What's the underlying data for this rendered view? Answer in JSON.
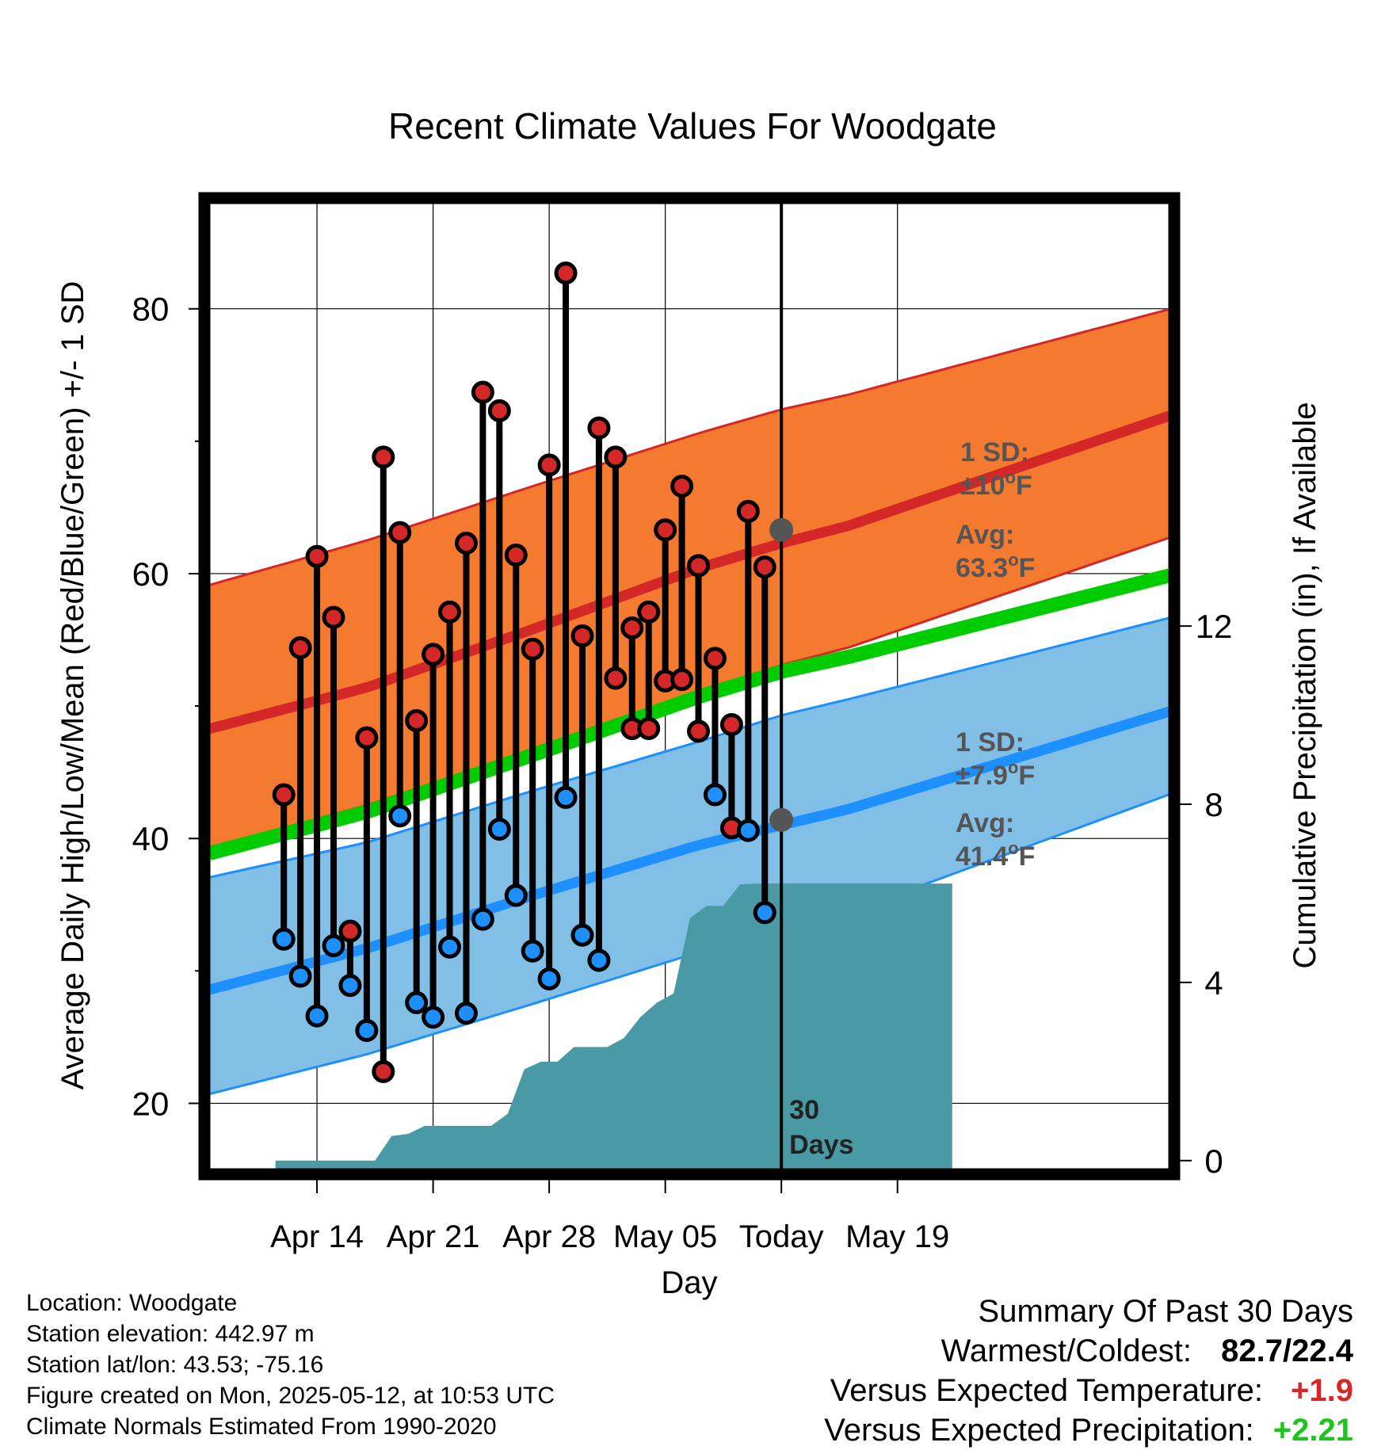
{
  "title": "Recent Climate Values For Woodgate",
  "footer": {
    "location": "Location: Woodgate",
    "elevation": "Station elevation: 442.97 m",
    "latlon": "Station lat/lon: 43.53; -75.16",
    "created": "Figure created on Mon, 2025-05-12, at 10:53 UTC",
    "normals": "Climate Normals Estimated From 1990-2020"
  },
  "summary": {
    "heading": "Summary Of Past 30 Days",
    "warmest_coldest_label": "Warmest/Coldest:",
    "warmest_coldest_value": "82.7/22.4",
    "temp_label": "Versus Expected Temperature:",
    "temp_value": "+1.9",
    "precip_label": "Versus Expected Precipitation:",
    "precip_value": "+2.21",
    "temp_color": "#d62728",
    "precip_color": "#1ec41e"
  },
  "colors": {
    "high_band": "#f47a30",
    "high_line": "#d42727",
    "low_band": "#82bfe6",
    "low_line": "#1e8fff",
    "mean_line": "#00cc00",
    "precip_area": "#4a9aa5",
    "high_dot": "#d42727",
    "low_dot": "#1e8fff",
    "avg_dot": "#555555",
    "annotation_text": "#555555"
  },
  "chart_data": {
    "type": "line",
    "xlabel": "Day",
    "ylabel": "Average Daily High/Low/Mean (Red/Blue/Green) +/- 1 SD",
    "y2label": "Cumulative Precipitation (in), If Available",
    "ylim": [
      15,
      88
    ],
    "y2lim": [
      -0.2,
      21.5
    ],
    "xlim": [
      -4.5,
      53.4
    ],
    "x_unit": "days after 2025-04-12",
    "x_ticks": [
      {
        "x": 2,
        "label": "Apr 14"
      },
      {
        "x": 9,
        "label": "Apr 21"
      },
      {
        "x": 16,
        "label": "Apr 28"
      },
      {
        "x": 23,
        "label": "May 05"
      },
      {
        "x": 30,
        "label": "Today"
      },
      {
        "x": 37,
        "label": "May 19"
      }
    ],
    "y_ticks": [
      20,
      40,
      60,
      80
    ],
    "y_minor_ticks": [
      30,
      50,
      70
    ],
    "y2_ticks": [
      0,
      4,
      8,
      12
    ],
    "grid": true,
    "today_x": 30,
    "today_label": "30 Days",
    "normals": {
      "x": [
        -2.9,
        5,
        15,
        25,
        30,
        34,
        40.3
      ],
      "high_mean": [
        48.8,
        51.4,
        55.8,
        60.4,
        62.3,
        63.6,
        66.3
      ],
      "high_sd_top": [
        59.7,
        62.5,
        66.6,
        70.6,
        72.4,
        73.5,
        75.6
      ],
      "high_sd_bottom": [
        39.8,
        42.5,
        46.7,
        51.0,
        53.1,
        54.4,
        57.1
      ],
      "mean": [
        39.4,
        42.0,
        46.3,
        50.7,
        52.6,
        53.7,
        55.7
      ],
      "low_mean": [
        29.1,
        31.7,
        35.7,
        39.5,
        41.0,
        42.2,
        44.6
      ],
      "low_sd_top": [
        37.5,
        39.7,
        43.6,
        47.3,
        49.3,
        50.5,
        52.5
      ],
      "low_sd_bottom": [
        21.2,
        23.7,
        27.5,
        31.4,
        33.4,
        34.4,
        37.3
      ]
    },
    "daily": [
      {
        "day": "Apr 12",
        "high": 43.3,
        "low": 32.4,
        "high_above_normal": true,
        "low_above_normal": false
      },
      {
        "day": "Apr 13",
        "high": 54.4,
        "low": 29.6,
        "high_above_normal": true,
        "low_above_normal": false
      },
      {
        "day": "Apr 14",
        "high": 61.3,
        "low": 26.6,
        "high_above_normal": true,
        "low_above_normal": false
      },
      {
        "day": "Apr 15",
        "high": 56.7,
        "low": 31.9,
        "high_above_normal": true,
        "low_above_normal": false
      },
      {
        "day": "Apr 16",
        "high": 33.0,
        "low": 28.9,
        "high_above_normal": true,
        "low_above_normal": false
      },
      {
        "day": "Apr 17",
        "high": 47.6,
        "low": 25.5,
        "high_above_normal": true,
        "low_above_normal": false
      },
      {
        "day": "Apr 18",
        "high": 68.8,
        "low": 22.4,
        "high_above_normal": true,
        "low_above_normal": true
      },
      {
        "day": "Apr 19",
        "high": 63.1,
        "low": 41.7,
        "high_above_normal": true,
        "low_above_normal": false
      },
      {
        "day": "Apr 20",
        "high": 48.9,
        "low": 27.6,
        "high_above_normal": true,
        "low_above_normal": false
      },
      {
        "day": "Apr 21",
        "high": 53.9,
        "low": 26.5,
        "high_above_normal": true,
        "low_above_normal": false
      },
      {
        "day": "Apr 22",
        "high": 57.1,
        "low": 31.8,
        "high_above_normal": true,
        "low_above_normal": false
      },
      {
        "day": "Apr 23",
        "high": 62.3,
        "low": 26.8,
        "high_above_normal": true,
        "low_above_normal": false
      },
      {
        "day": "Apr 24",
        "high": 73.7,
        "low": 33.9,
        "high_above_normal": true,
        "low_above_normal": false
      },
      {
        "day": "Apr 25",
        "high": 72.3,
        "low": 40.7,
        "high_above_normal": true,
        "low_above_normal": false
      },
      {
        "day": "Apr 26",
        "high": 61.4,
        "low": 35.7,
        "high_above_normal": true,
        "low_above_normal": false
      },
      {
        "day": "Apr 27",
        "high": 54.3,
        "low": 31.5,
        "high_above_normal": true,
        "low_above_normal": false
      },
      {
        "day": "Apr 28",
        "high": 68.2,
        "low": 29.4,
        "high_above_normal": true,
        "low_above_normal": false
      },
      {
        "day": "Apr 29",
        "high": 82.7,
        "low": 43.1,
        "high_above_normal": true,
        "low_above_normal": false
      },
      {
        "day": "Apr 30",
        "high": 55.3,
        "low": 32.7,
        "high_above_normal": true,
        "low_above_normal": false
      },
      {
        "day": "May 01",
        "high": 71.0,
        "low": 30.8,
        "high_above_normal": true,
        "low_above_normal": false
      },
      {
        "day": "May 02",
        "high": 68.8,
        "low": 52.1,
        "high_above_normal": true,
        "low_above_normal": true
      },
      {
        "day": "May 03",
        "high": 55.9,
        "low": 48.3,
        "high_above_normal": true,
        "low_above_normal": true
      },
      {
        "day": "May 04",
        "high": 57.1,
        "low": 48.3,
        "high_above_normal": true,
        "low_above_normal": true
      },
      {
        "day": "May 05",
        "high": 63.3,
        "low": 51.9,
        "high_above_normal": true,
        "low_above_normal": true
      },
      {
        "day": "May 06",
        "high": 66.6,
        "low": 52.0,
        "high_above_normal": true,
        "low_above_normal": true
      },
      {
        "day": "May 07",
        "high": 60.6,
        "low": 48.1,
        "high_above_normal": true,
        "low_above_normal": true
      },
      {
        "day": "May 08",
        "high": 53.6,
        "low": 43.3,
        "high_above_normal": true,
        "low_above_normal": false
      },
      {
        "day": "May 09",
        "high": 48.6,
        "low": 40.8,
        "high_above_normal": true,
        "low_above_normal": true
      },
      {
        "day": "May 10",
        "high": 64.7,
        "low": 40.6,
        "high_above_normal": true,
        "low_above_normal": false
      },
      {
        "day": "May 11",
        "high": 60.5,
        "low": 34.4,
        "high_above_normal": true,
        "low_above_normal": false
      }
    ],
    "precip_cumulative": {
      "x": [
        -0.5,
        0.5,
        1.5,
        2.5,
        3.5,
        4.5,
        5.5,
        6.5,
        7.5,
        8.5,
        9.5,
        10.5,
        11.5,
        12.5,
        13.5,
        14.5,
        15.5,
        16.5,
        17.5,
        18.5,
        19.5,
        20.5,
        21.5,
        22.5,
        23.5,
        24.5,
        25.5,
        26.5,
        27.5,
        28.5,
        29.5,
        40.3
      ],
      "y": [
        0,
        0,
        0,
        0,
        0,
        0,
        0,
        0.55,
        0.6,
        0.78,
        0.78,
        0.78,
        0.78,
        0.78,
        1.05,
        2.05,
        2.22,
        2.22,
        2.55,
        2.55,
        2.55,
        2.75,
        3.22,
        3.55,
        3.75,
        5.45,
        5.72,
        5.72,
        6.2,
        6.22,
        6.22,
        6.22
      ]
    },
    "annotations": {
      "high_sd": "1 SD:\n±10°F",
      "high_avg": "Avg:\n63.3°F",
      "low_sd": "1 SD:\n±7.9°F",
      "low_avg": "Avg:\n41.4°F",
      "high_avg_value": 63.3,
      "low_avg_value": 41.4
    }
  }
}
